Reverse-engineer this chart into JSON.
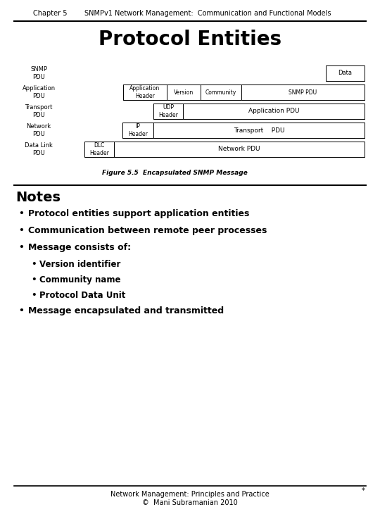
{
  "bg_color": "#ffffff",
  "header_chapter": "Chapter 5",
  "header_title": "SNMPv1 Network Management:  Communication and Functional Models",
  "slide_title": "Protocol Entities",
  "figure_caption": "Figure 5.5  Encapsulated SNMP Message",
  "notes_title": "Notes",
  "bullets": [
    {
      "level": 1,
      "text": "Protocol entities support application entities"
    },
    {
      "level": 1,
      "text": "Communication between remote peer processes"
    },
    {
      "level": 1,
      "text": "Message consists of:"
    },
    {
      "level": 2,
      "text": "Version identifier"
    },
    {
      "level": 2,
      "text": "Community name"
    },
    {
      "level": 2,
      "text": "Protocol Data Unit"
    },
    {
      "level": 1,
      "text": "Message encapsulated and transmitted"
    }
  ],
  "footer_line1": "Network Management: Principles and Practice",
  "footer_line2": "©  Mani Subramanian 2010",
  "footer_star": "*"
}
